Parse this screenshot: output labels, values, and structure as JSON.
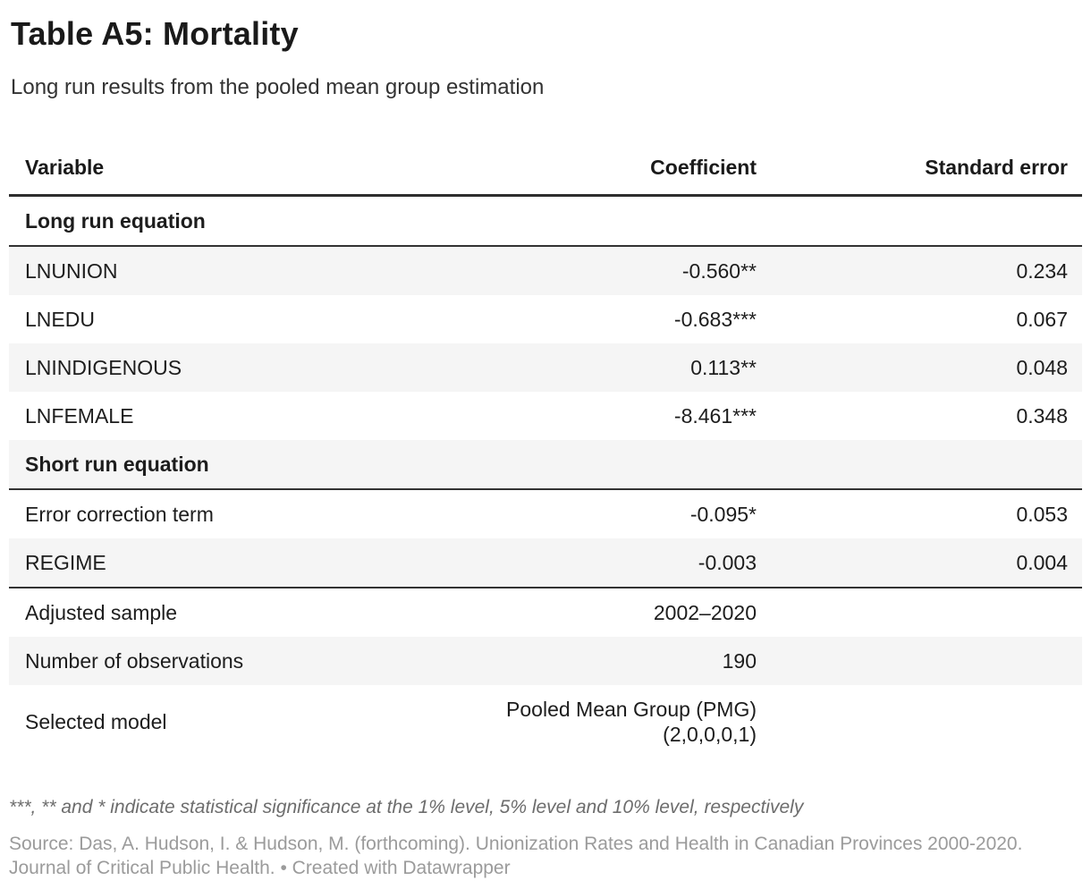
{
  "chart_data": {
    "type": "table",
    "title": "Table A5: Mortality",
    "subtitle": "Long run results from the pooled mean group estimation",
    "columns": [
      "Variable",
      "Coefficient",
      "Standard error"
    ],
    "rows": [
      {
        "kind": "section",
        "label": "Long run equation"
      },
      {
        "kind": "data",
        "label": "LNUNION",
        "coefficient": "-0.560**",
        "standard_error": "0.234"
      },
      {
        "kind": "data",
        "label": "LNEDU",
        "coefficient": "-0.683***",
        "standard_error": "0.067"
      },
      {
        "kind": "data",
        "label": "LNINDIGENOUS",
        "coefficient": "0.113**",
        "standard_error": "0.048"
      },
      {
        "kind": "data",
        "label": "LNFEMALE",
        "coefficient": "-8.461***",
        "standard_error": "0.348"
      },
      {
        "kind": "section",
        "label": "Short run equation"
      },
      {
        "kind": "data",
        "label": "Error correction term",
        "coefficient": "-0.095*",
        "standard_error": "0.053"
      },
      {
        "kind": "data",
        "label": "REGIME",
        "coefficient": "-0.003",
        "standard_error": "0.004"
      },
      {
        "kind": "data",
        "label": "Adjusted sample",
        "coefficient": "2002–2020",
        "standard_error": ""
      },
      {
        "kind": "data",
        "label": "Number of observations",
        "coefficient": "190",
        "standard_error": ""
      },
      {
        "kind": "data",
        "label": "Selected model",
        "coefficient": "Pooled Mean Group (PMG)",
        "coefficient_line2": "(2,0,0,0,1)",
        "standard_error": ""
      }
    ],
    "layout_hints": {
      "zebra_striping": true,
      "section_rules_below": [
        "Long run equation",
        "Short run equation",
        "REGIME"
      ],
      "coefficient_column_align": "right",
      "standard_error_column_align": "right"
    }
  },
  "footer": {
    "note": "***, ** and * indicate statistical significance at the 1% level, 5% level and 10% level, respectively",
    "source_line1": "Source: Das, A. Hudson, I. & Hudson, M. (forthcoming). Unionization Rates and Health in Canadian Provinces 2000-2020.",
    "source_line2": "Journal of Critical Public Health. • Created with Datawrapper"
  },
  "colors": {
    "background": "#ffffff",
    "title_text": "#1a1a1a",
    "body_text": "#1d1d1d",
    "subtitle_text": "#333333",
    "stripe_row": "#f5f5f5",
    "header_rule": "#2e2e2e",
    "section_rule": "#333333",
    "note_text": "#6d6d6d",
    "source_text": "#9b9b9b"
  }
}
